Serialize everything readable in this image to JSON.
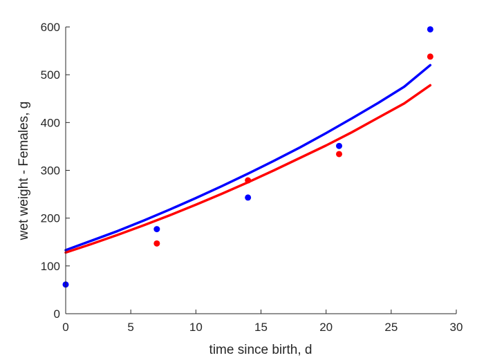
{
  "chart_data": {
    "type": "scatter",
    "title": "",
    "xlabel": "time since birth, d",
    "ylabel": "wet weight - Females, g",
    "xlim": [
      0,
      30
    ],
    "ylim": [
      0,
      600
    ],
    "xticks": [
      0,
      5,
      10,
      15,
      20,
      25,
      30
    ],
    "yticks": [
      0,
      100,
      200,
      300,
      400,
      500,
      600
    ],
    "grid": false,
    "legend": "none",
    "series": [
      {
        "color": "#0000ff",
        "points": {
          "x": [
            0,
            7,
            14,
            21,
            28
          ],
          "y": [
            61,
            177,
            243,
            351,
            595
          ]
        },
        "fit": {
          "x": [
            0,
            2,
            4,
            6,
            8,
            10,
            12,
            14,
            16,
            18,
            20,
            22,
            24,
            26,
            28
          ],
          "y": [
            133,
            153,
            173,
            195,
            218,
            242,
            267,
            293,
            320,
            348,
            378,
            409,
            441,
            475,
            520
          ]
        }
      },
      {
        "color": "#ff0000",
        "points": {
          "x": [
            7,
            14,
            21,
            28
          ],
          "y": [
            147,
            279,
            334,
            538
          ]
        },
        "fit": {
          "x": [
            0,
            2,
            4,
            6,
            8,
            10,
            12,
            14,
            16,
            18,
            20,
            22,
            24,
            26,
            28
          ],
          "y": [
            128,
            146,
            165,
            185,
            206,
            228,
            251,
            275,
            300,
            326,
            352,
            380,
            410,
            440,
            478
          ]
        }
      }
    ]
  }
}
